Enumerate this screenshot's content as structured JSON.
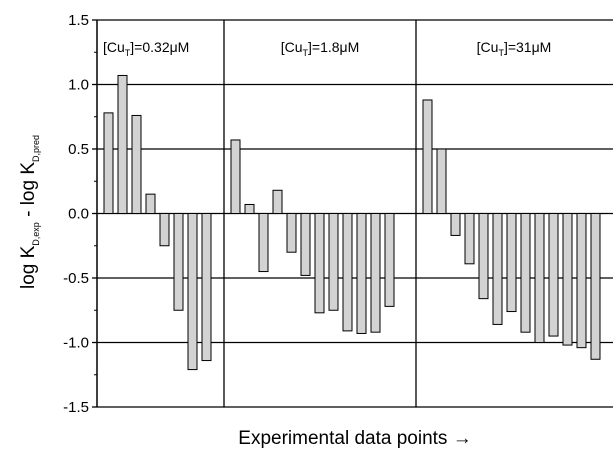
{
  "chart_data": {
    "type": "bar",
    "xlabel": "Experimental data points →",
    "ylabel": {
      "main1": "log K",
      "sub1": "D,exp",
      "main2": " - log K",
      "sub2": "D,pred"
    },
    "ylim": [
      -1.5,
      1.5
    ],
    "yticks": [
      "-1.5",
      "-1.0",
      "-0.5",
      "0.0",
      "0.5",
      "1.0",
      "1.5"
    ],
    "grid": "horizontal",
    "bar_color": "#d3d3d3",
    "panels": [
      {
        "label_prefix": "[Cu",
        "label_sub": "T",
        "label_suffix": "]=0.32μM",
        "values": [
          0.78,
          1.07,
          0.76,
          0.15,
          -0.25,
          -0.75,
          -1.21,
          -1.14
        ]
      },
      {
        "label_prefix": "[Cu",
        "label_sub": "T",
        "label_suffix": "]=1.8μM",
        "values": [
          0.57,
          0.07,
          -0.45,
          0.18,
          -0.3,
          -0.48,
          -0.77,
          -0.75,
          -0.91,
          -0.93,
          -0.92,
          -0.72
        ]
      },
      {
        "label_prefix": "[Cu",
        "label_sub": "T",
        "label_suffix": "]=31μM",
        "values": [
          0.88,
          0.5,
          -0.17,
          -0.39,
          -0.66,
          -0.86,
          -0.76,
          -0.92,
          -1.0,
          -0.95,
          -1.02,
          -1.04,
          -1.13
        ]
      }
    ]
  }
}
